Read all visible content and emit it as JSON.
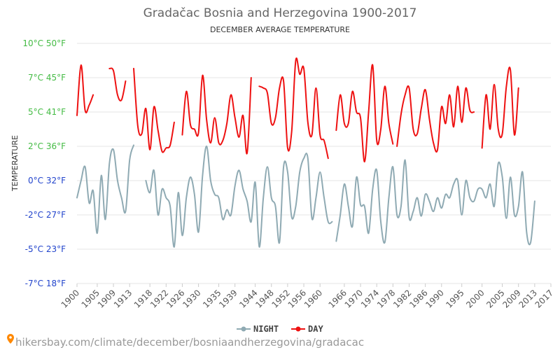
{
  "chart_data": {
    "type": "line",
    "title": "Gradačac Bosnia and Herzegovina 1900-2017",
    "subtitle": "DECEMBER AVERAGE TEMPERATURE",
    "ylabel": "TEMPERATURE",
    "xlim": [
      1900,
      2017
    ],
    "ylim": [
      -7,
      10
    ],
    "y_ticks": [
      {
        "value": 10,
        "label": "10°C 50°F",
        "color": "#44bb44"
      },
      {
        "value": 7,
        "label": "7°C 45°F",
        "color": "#44bb44"
      },
      {
        "value": 5,
        "label": "5°C 41°F",
        "color": "#44bb44"
      },
      {
        "value": 2,
        "label": "2°C 36°F",
        "color": "#44bb44"
      },
      {
        "value": 0,
        "label": "0°C 32°F",
        "color": "#2244cc"
      },
      {
        "value": -2,
        "label": "-2°C 27°F",
        "color": "#2244cc"
      },
      {
        "value": -5,
        "label": "-5°C 23°F",
        "color": "#2244cc"
      },
      {
        "value": -7,
        "label": "-7°C 18°F",
        "color": "#2244cc"
      }
    ],
    "x_ticks": [
      {
        "year": 1900,
        "label": "1900"
      },
      {
        "year": 1905,
        "label": "1905"
      },
      {
        "year": 1909,
        "label": "1909"
      },
      {
        "year": 1913,
        "label": "1913"
      },
      {
        "year": 1918,
        "label": "1918"
      },
      {
        "year": 1922,
        "label": "1922"
      },
      {
        "year": 1926,
        "label": "1926"
      },
      {
        "year": 1930,
        "label": "1930"
      },
      {
        "year": 1935,
        "label": "1935"
      },
      {
        "year": 1939,
        "label": "1939"
      },
      {
        "year": 1944,
        "label": "1944"
      },
      {
        "year": 1948,
        "label": "1948"
      },
      {
        "year": 1952,
        "label": "1952"
      },
      {
        "year": 1956,
        "label": "1956"
      },
      {
        "year": 1960,
        "label": "1960"
      },
      {
        "year": 1966,
        "label": "1966"
      },
      {
        "year": 1970,
        "label": "1970"
      },
      {
        "year": 1974,
        "label": "1974"
      },
      {
        "year": 1978,
        "label": "1978"
      },
      {
        "year": 1982,
        "label": "1982"
      },
      {
        "year": 1986,
        "label": "1986"
      },
      {
        "year": 1990,
        "label": "1990"
      },
      {
        "year": 1995,
        "label": "1995"
      },
      {
        "year": 2000,
        "label": "2000"
      },
      {
        "year": 2005,
        "label": "2005"
      },
      {
        "year": 2009,
        "label": "2009"
      },
      {
        "year": 2013,
        "label": "2013"
      },
      {
        "year": 2017,
        "label": "2017"
      }
    ],
    "series": [
      {
        "name": "NIGHT",
        "color": "#8faab3",
        "segments": [
          [
            [
              1900,
              -1.0
            ],
            [
              1901,
              0.0
            ],
            [
              1902,
              0.8
            ],
            [
              1903,
              -1.3
            ],
            [
              1904,
              -0.6
            ],
            [
              1905,
              -3.6
            ],
            [
              1906,
              0.3
            ],
            [
              1907,
              -2.4
            ],
            [
              1908,
              1.0
            ],
            [
              1909,
              1.8
            ],
            [
              1910,
              0.0
            ],
            [
              1911,
              -1.0
            ],
            [
              1912,
              -1.8
            ],
            [
              1913,
              1.2
            ],
            [
              1914,
              2.1
            ]
          ],
          [
            [
              1917,
              0.0
            ],
            [
              1918,
              -0.7
            ],
            [
              1919,
              0.6
            ],
            [
              1920,
              -2.0
            ],
            [
              1921,
              -0.5
            ],
            [
              1922,
              -1.0
            ],
            [
              1923,
              -1.5
            ],
            [
              1924,
              -4.8
            ],
            [
              1925,
              -0.7
            ],
            [
              1926,
              -3.8
            ],
            [
              1927,
              -1.0
            ],
            [
              1928,
              0.2
            ],
            [
              1929,
              -0.8
            ],
            [
              1930,
              -3.5
            ],
            [
              1931,
              0.3
            ],
            [
              1932,
              2.0
            ],
            [
              1933,
              0.0
            ],
            [
              1934,
              -0.8
            ],
            [
              1935,
              -1.0
            ],
            [
              1936,
              -2.4
            ],
            [
              1937,
              -1.7
            ],
            [
              1938,
              -2.0
            ],
            [
              1939,
              -0.3
            ],
            [
              1940,
              0.6
            ],
            [
              1941,
              -0.5
            ],
            [
              1942,
              -1.2
            ],
            [
              1943,
              -2.6
            ],
            [
              1944,
              -0.1
            ],
            [
              1945,
              -4.8
            ],
            [
              1946,
              -1.0
            ],
            [
              1947,
              0.8
            ],
            [
              1948,
              -1.0
            ],
            [
              1949,
              -1.5
            ],
            [
              1950,
              -4.4
            ],
            [
              1951,
              0.8
            ],
            [
              1952,
              0.5
            ],
            [
              1953,
              -2.2
            ],
            [
              1954,
              -1.5
            ],
            [
              1955,
              0.5
            ],
            [
              1956,
              1.3
            ],
            [
              1957,
              1.3
            ],
            [
              1958,
              -2.3
            ],
            [
              1959,
              -1.0
            ],
            [
              1960,
              0.5
            ],
            [
              1961,
              -1.0
            ],
            [
              1962,
              -2.6
            ],
            [
              1963,
              -2.6
            ]
          ],
          [
            [
              1964,
              -4.3
            ],
            [
              1965,
              -2.0
            ],
            [
              1966,
              -0.2
            ],
            [
              1967,
              -1.5
            ],
            [
              1968,
              -3.0
            ],
            [
              1969,
              0.2
            ],
            [
              1970,
              -1.4
            ],
            [
              1971,
              -1.5
            ],
            [
              1972,
              -3.6
            ],
            [
              1973,
              -0.5
            ],
            [
              1974,
              0.6
            ],
            [
              1975,
              -2.6
            ],
            [
              1976,
              -4.4
            ],
            [
              1977,
              -1.0
            ],
            [
              1978,
              0.8
            ],
            [
              1979,
              -2.0
            ],
            [
              1980,
              -1.5
            ],
            [
              1981,
              1.2
            ],
            [
              1982,
              -2.2
            ],
            [
              1983,
              -1.8
            ],
            [
              1984,
              -1.0
            ],
            [
              1985,
              -2.1
            ],
            [
              1986,
              -0.8
            ],
            [
              1987,
              -1.2
            ],
            [
              1988,
              -1.8
            ],
            [
              1989,
              -1.0
            ],
            [
              1990,
              -1.6
            ],
            [
              1991,
              -0.8
            ],
            [
              1992,
              -1.0
            ],
            [
              1993,
              -0.2
            ],
            [
              1994,
              0.0
            ],
            [
              1995,
              -2.0
            ],
            [
              1996,
              0.0
            ],
            [
              1997,
              -1.0
            ],
            [
              1998,
              -1.2
            ],
            [
              1999,
              -0.5
            ],
            [
              2000,
              -0.5
            ],
            [
              2001,
              -1.0
            ],
            [
              2002,
              -0.2
            ],
            [
              2003,
              -1.5
            ],
            [
              2004,
              1.0
            ],
            [
              2005,
              0.2
            ],
            [
              2006,
              -2.3
            ],
            [
              2007,
              0.2
            ],
            [
              2008,
              -2.0
            ],
            [
              2009,
              -1.5
            ],
            [
              2010,
              0.5
            ],
            [
              2011,
              -3.5
            ],
            [
              2012,
              -4.4
            ],
            [
              2013,
              -1.2
            ]
          ]
        ]
      },
      {
        "name": "DAY",
        "color": "#ee1111",
        "segments": [
          [
            [
              1900,
              4.7
            ],
            [
              1901,
              8.1
            ],
            [
              1902,
              5.1
            ],
            [
              1903,
              5.4
            ],
            [
              1904,
              6.0
            ]
          ],
          [
            [
              1908,
              7.8
            ],
            [
              1909,
              7.6
            ],
            [
              1910,
              6.0
            ],
            [
              1911,
              5.7
            ],
            [
              1912,
              6.8
            ]
          ],
          [
            [
              1914,
              7.8
            ],
            [
              1915,
              3.8
            ],
            [
              1916,
              3.1
            ],
            [
              1917,
              5.2
            ],
            [
              1918,
              1.8
            ],
            [
              1919,
              5.3
            ],
            [
              1920,
              3.4
            ],
            [
              1921,
              1.7
            ],
            [
              1922,
              1.9
            ],
            [
              1923,
              2.1
            ],
            [
              1924,
              4.1
            ]
          ],
          [
            [
              1926,
              3.0
            ],
            [
              1927,
              6.2
            ],
            [
              1928,
              3.9
            ],
            [
              1929,
              3.5
            ],
            [
              1930,
              3.2
            ],
            [
              1931,
              7.2
            ],
            [
              1932,
              4.3
            ],
            [
              1933,
              2.3
            ],
            [
              1934,
              4.5
            ],
            [
              1935,
              2.3
            ],
            [
              1936,
              2.5
            ],
            [
              1937,
              4.0
            ],
            [
              1938,
              6.0
            ],
            [
              1939,
              4.5
            ],
            [
              1940,
              2.8
            ],
            [
              1941,
              4.7
            ],
            [
              1942,
              1.6
            ],
            [
              1943,
              7.0
            ]
          ],
          [
            [
              1945,
              6.5
            ],
            [
              1946,
              6.4
            ],
            [
              1947,
              6.1
            ],
            [
              1948,
              4.0
            ],
            [
              1949,
              4.5
            ],
            [
              1950,
              6.4
            ],
            [
              1951,
              6.8
            ],
            [
              1952,
              1.9
            ],
            [
              1953,
              3.3
            ],
            [
              1954,
              8.5
            ],
            [
              1955,
              7.3
            ],
            [
              1956,
              7.8
            ],
            [
              1957,
              4.1
            ],
            [
              1958,
              3.0
            ],
            [
              1959,
              6.4
            ],
            [
              1960,
              3.0
            ],
            [
              1961,
              2.5
            ],
            [
              1962,
              1.3
            ]
          ],
          [
            [
              1964,
              3.4
            ],
            [
              1965,
              6.0
            ],
            [
              1966,
              4.0
            ],
            [
              1967,
              4.0
            ],
            [
              1968,
              6.2
            ],
            [
              1969,
              5.0
            ],
            [
              1970,
              4.5
            ],
            [
              1971,
              1.1
            ],
            [
              1972,
              5.0
            ],
            [
              1973,
              8.1
            ],
            [
              1974,
              2.5
            ],
            [
              1975,
              3.5
            ],
            [
              1976,
              6.5
            ],
            [
              1977,
              4.0
            ],
            [
              1978,
              2.2
            ]
          ],
          [
            [
              1979,
              2.0
            ],
            [
              1980,
              4.8
            ],
            [
              1981,
              6.0
            ],
            [
              1982,
              6.4
            ],
            [
              1983,
              3.5
            ],
            [
              1984,
              3.1
            ],
            [
              1985,
              5.2
            ],
            [
              1986,
              6.3
            ],
            [
              1987,
              4.4
            ],
            [
              1988,
              2.3
            ],
            [
              1989,
              1.8
            ],
            [
              1990,
              5.3
            ],
            [
              1991,
              4.0
            ],
            [
              1992,
              6.0
            ],
            [
              1993,
              3.7
            ],
            [
              1994,
              6.5
            ],
            [
              1995,
              4.1
            ],
            [
              1996,
              6.4
            ],
            [
              1997,
              5.1
            ],
            [
              1998,
              5.0
            ]
          ],
          [
            [
              2000,
              1.9
            ],
            [
              2001,
              6.0
            ],
            [
              2002,
              3.5
            ],
            [
              2003,
              6.6
            ],
            [
              2004,
              3.5
            ],
            [
              2005,
              3.1
            ],
            [
              2006,
              6.5
            ],
            [
              2007,
              7.7
            ],
            [
              2008,
              3.0
            ],
            [
              2009,
              6.4
            ]
          ]
        ]
      }
    ],
    "legend": {
      "position": "bottom"
    },
    "source": "hikersbay.com/climate/december/bosniaandherzegovina/gradacac"
  }
}
